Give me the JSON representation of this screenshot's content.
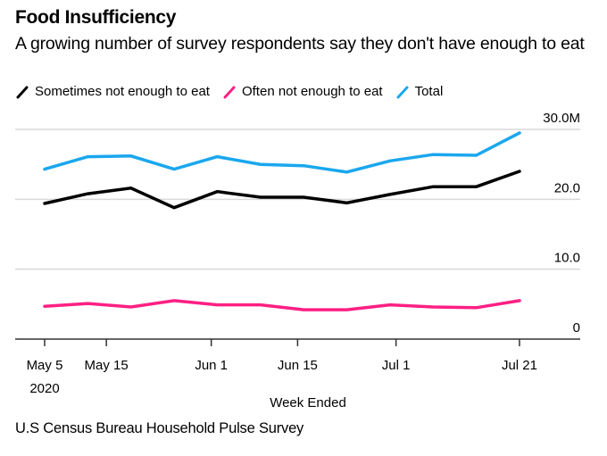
{
  "title": "Food Insufficiency",
  "subtitle": "A growing number of survey respondents say they don't have enough to eat",
  "source": "U.S Census Bureau Household Pulse Survey",
  "legend": [
    {
      "label": "Sometimes not enough to eat",
      "color": "#000000"
    },
    {
      "label": "Often not enough to eat",
      "color": "#ff1f83"
    },
    {
      "label": "Total",
      "color": "#1aa7ee"
    }
  ],
  "chart_data": {
    "type": "line",
    "title": "Food Insufficiency",
    "subtitle": "A growing number of survey respondents say they don't have enough to eat",
    "xlabel": "Week Ended",
    "ylabel": "",
    "y_unit": "M",
    "ylim": [
      0,
      30
    ],
    "grid": true,
    "legend_position": "top-left",
    "x": [
      "2020-05-05",
      "2020-05-12",
      "2020-05-19",
      "2020-05-26",
      "2020-06-02",
      "2020-06-09",
      "2020-06-16",
      "2020-06-23",
      "2020-06-30",
      "2020-07-07",
      "2020-07-14",
      "2020-07-21"
    ],
    "x_ticks": [
      {
        "index": 0,
        "label": "May 5",
        "sublabel": "2020"
      },
      {
        "index": 1.43,
        "label": "May 15",
        "sublabel": ""
      },
      {
        "index": 3.86,
        "label": "Jun 1",
        "sublabel": ""
      },
      {
        "index": 5.86,
        "label": "Jun 15",
        "sublabel": ""
      },
      {
        "index": 8.14,
        "label": "Jul 1",
        "sublabel": ""
      },
      {
        "index": 11,
        "label": "Jul 21",
        "sublabel": ""
      }
    ],
    "y_ticks": [
      {
        "value": 30,
        "label": "30.0M"
      },
      {
        "value": 20,
        "label": "20.0"
      },
      {
        "value": 10,
        "label": "10.0"
      },
      {
        "value": 0,
        "label": "0"
      }
    ],
    "series": [
      {
        "name": "Sometimes not enough to eat",
        "color": "#000000",
        "values": [
          19.4,
          20.8,
          21.6,
          18.8,
          21.1,
          20.3,
          20.3,
          19.5,
          20.7,
          21.8,
          21.8,
          24.0
        ]
      },
      {
        "name": "Often not enough to eat",
        "color": "#ff1f83",
        "values": [
          4.7,
          5.1,
          4.6,
          5.5,
          4.9,
          4.9,
          4.2,
          4.2,
          4.9,
          4.6,
          4.5,
          5.5
        ]
      },
      {
        "name": "Total",
        "color": "#1aa7ee",
        "values": [
          24.3,
          26.1,
          26.2,
          24.3,
          26.1,
          25.0,
          24.8,
          23.9,
          25.5,
          26.4,
          26.3,
          29.5
        ]
      }
    ]
  }
}
